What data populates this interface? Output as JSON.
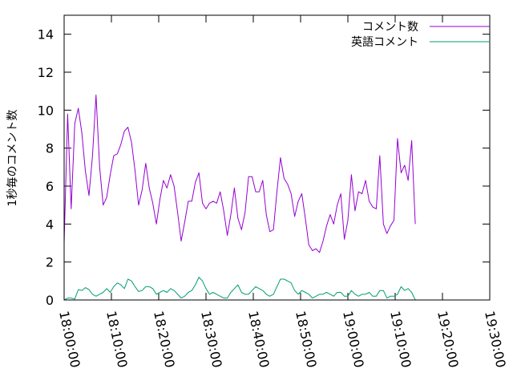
{
  "chart_data": {
    "type": "line",
    "ylabel": "1秒毎のコメント数",
    "xlabel": "",
    "title": "",
    "ylim": [
      0,
      15
    ],
    "xlim": [
      "18:00:00",
      "19:30:00"
    ],
    "y_ticks": [
      "0",
      "2",
      "4",
      "6",
      "8",
      "10",
      "12",
      "14"
    ],
    "x_ticks": [
      "18:00:00",
      "18:10:00",
      "18:20:00",
      "18:30:00",
      "18:40:00",
      "18:50:00",
      "19:00:00",
      "19:10:00",
      "19:20:00",
      "19:30:00"
    ],
    "legend_position": "top-right",
    "grid": false,
    "series": [
      {
        "name": "コメント数",
        "color": "#9400d3",
        "points": [
          [
            "18:00:00",
            3.0
          ],
          [
            "18:00:45",
            9.8
          ],
          [
            "18:01:30",
            4.8
          ],
          [
            "18:02:15",
            9.3
          ],
          [
            "18:03:00",
            10.1
          ],
          [
            "18:03:45",
            8.8
          ],
          [
            "18:04:30",
            6.8
          ],
          [
            "18:05:15",
            5.5
          ],
          [
            "18:06:00",
            7.6
          ],
          [
            "18:06:45",
            10.8
          ],
          [
            "18:07:30",
            7.0
          ],
          [
            "18:08:15",
            5.0
          ],
          [
            "18:09:00",
            5.4
          ],
          [
            "18:09:45",
            6.6
          ],
          [
            "18:10:30",
            7.6
          ],
          [
            "18:11:15",
            7.7
          ],
          [
            "18:12:00",
            8.2
          ],
          [
            "18:12:45",
            8.9
          ],
          [
            "18:13:30",
            9.1
          ],
          [
            "18:14:15",
            8.3
          ],
          [
            "18:15:00",
            6.8
          ],
          [
            "18:15:45",
            5.0
          ],
          [
            "18:16:30",
            5.8
          ],
          [
            "18:17:15",
            7.2
          ],
          [
            "18:18:00",
            5.9
          ],
          [
            "18:18:45",
            5.1
          ],
          [
            "18:19:30",
            4.0
          ],
          [
            "18:20:15",
            5.3
          ],
          [
            "18:21:00",
            6.3
          ],
          [
            "18:21:45",
            5.9
          ],
          [
            "18:22:30",
            6.6
          ],
          [
            "18:23:15",
            6.0
          ],
          [
            "18:24:00",
            4.6
          ],
          [
            "18:24:45",
            3.1
          ],
          [
            "18:25:30",
            4.1
          ],
          [
            "18:26:15",
            5.2
          ],
          [
            "18:27:00",
            5.2
          ],
          [
            "18:27:45",
            6.2
          ],
          [
            "18:28:30",
            6.7
          ],
          [
            "18:29:15",
            5.1
          ],
          [
            "18:30:00",
            4.8
          ],
          [
            "18:30:45",
            5.1
          ],
          [
            "18:31:30",
            5.2
          ],
          [
            "18:32:15",
            5.1
          ],
          [
            "18:33:00",
            5.7
          ],
          [
            "18:33:45",
            4.7
          ],
          [
            "18:34:30",
            3.4
          ],
          [
            "18:35:15",
            4.5
          ],
          [
            "18:36:00",
            5.9
          ],
          [
            "18:36:45",
            4.3
          ],
          [
            "18:37:30",
            3.7
          ],
          [
            "18:38:15",
            4.6
          ],
          [
            "18:39:00",
            6.5
          ],
          [
            "18:39:45",
            6.5
          ],
          [
            "18:40:30",
            5.7
          ],
          [
            "18:41:15",
            5.7
          ],
          [
            "18:42:00",
            6.3
          ],
          [
            "18:42:45",
            4.5
          ],
          [
            "18:43:30",
            3.6
          ],
          [
            "18:44:15",
            3.7
          ],
          [
            "18:45:00",
            5.7
          ],
          [
            "18:45:45",
            7.5
          ],
          [
            "18:46:30",
            6.4
          ],
          [
            "18:47:15",
            6.1
          ],
          [
            "18:48:00",
            5.6
          ],
          [
            "18:48:45",
            4.4
          ],
          [
            "18:49:30",
            5.2
          ],
          [
            "18:50:15",
            5.6
          ],
          [
            "18:51:00",
            4.3
          ],
          [
            "18:51:45",
            2.9
          ],
          [
            "18:52:30",
            2.6
          ],
          [
            "18:53:15",
            2.7
          ],
          [
            "18:54:00",
            2.5
          ],
          [
            "18:54:45",
            3.1
          ],
          [
            "18:55:30",
            3.9
          ],
          [
            "18:56:15",
            4.5
          ],
          [
            "18:57:00",
            4.0
          ],
          [
            "18:57:45",
            5.0
          ],
          [
            "18:58:30",
            5.6
          ],
          [
            "18:59:15",
            3.2
          ],
          [
            "19:00:00",
            4.2
          ],
          [
            "19:00:45",
            6.6
          ],
          [
            "19:01:30",
            4.7
          ],
          [
            "19:02:15",
            5.7
          ],
          [
            "19:03:00",
            5.6
          ],
          [
            "19:03:45",
            6.3
          ],
          [
            "19:04:30",
            5.2
          ],
          [
            "19:05:15",
            4.9
          ],
          [
            "19:06:00",
            4.8
          ],
          [
            "19:06:45",
            7.6
          ],
          [
            "19:07:30",
            4.0
          ],
          [
            "19:08:15",
            3.5
          ],
          [
            "19:09:00",
            3.9
          ],
          [
            "19:09:45",
            4.2
          ],
          [
            "19:10:30",
            8.5
          ],
          [
            "19:11:15",
            6.7
          ],
          [
            "19:12:00",
            7.1
          ],
          [
            "19:12:45",
            6.3
          ],
          [
            "19:13:30",
            8.4
          ],
          [
            "19:14:15",
            4.0
          ]
        ]
      },
      {
        "name": "英語コメント",
        "color": "#009e73",
        "points": [
          [
            "18:00:00",
            0.0
          ],
          [
            "18:00:45",
            0.1
          ],
          [
            "18:01:30",
            0.1
          ],
          [
            "18:02:15",
            0.05
          ],
          [
            "18:03:00",
            0.55
          ],
          [
            "18:03:45",
            0.5
          ],
          [
            "18:04:30",
            0.65
          ],
          [
            "18:05:15",
            0.55
          ],
          [
            "18:06:00",
            0.3
          ],
          [
            "18:06:45",
            0.2
          ],
          [
            "18:07:30",
            0.3
          ],
          [
            "18:08:15",
            0.4
          ],
          [
            "18:09:00",
            0.6
          ],
          [
            "18:09:45",
            0.4
          ],
          [
            "18:10:30",
            0.7
          ],
          [
            "18:11:15",
            0.9
          ],
          [
            "18:12:00",
            0.8
          ],
          [
            "18:12:45",
            0.6
          ],
          [
            "18:13:30",
            1.1
          ],
          [
            "18:14:15",
            1.0
          ],
          [
            "18:15:00",
            0.7
          ],
          [
            "18:15:45",
            0.45
          ],
          [
            "18:16:30",
            0.5
          ],
          [
            "18:17:15",
            0.7
          ],
          [
            "18:18:00",
            0.7
          ],
          [
            "18:18:45",
            0.6
          ],
          [
            "18:19:30",
            0.3
          ],
          [
            "18:20:15",
            0.4
          ],
          [
            "18:21:00",
            0.5
          ],
          [
            "18:21:45",
            0.4
          ],
          [
            "18:22:30",
            0.6
          ],
          [
            "18:23:15",
            0.5
          ],
          [
            "18:24:00",
            0.3
          ],
          [
            "18:24:45",
            0.1
          ],
          [
            "18:25:30",
            0.2
          ],
          [
            "18:26:15",
            0.4
          ],
          [
            "18:27:00",
            0.5
          ],
          [
            "18:27:45",
            0.8
          ],
          [
            "18:28:30",
            1.2
          ],
          [
            "18:29:15",
            1.0
          ],
          [
            "18:30:00",
            0.6
          ],
          [
            "18:30:45",
            0.3
          ],
          [
            "18:31:30",
            0.4
          ],
          [
            "18:32:15",
            0.3
          ],
          [
            "18:33:00",
            0.2
          ],
          [
            "18:33:45",
            0.1
          ],
          [
            "18:34:30",
            0.1
          ],
          [
            "18:35:15",
            0.4
          ],
          [
            "18:36:00",
            0.6
          ],
          [
            "18:36:45",
            0.8
          ],
          [
            "18:37:30",
            0.4
          ],
          [
            "18:38:15",
            0.3
          ],
          [
            "18:39:00",
            0.3
          ],
          [
            "18:39:45",
            0.5
          ],
          [
            "18:40:30",
            0.7
          ],
          [
            "18:41:15",
            0.6
          ],
          [
            "18:42:00",
            0.5
          ],
          [
            "18:42:45",
            0.3
          ],
          [
            "18:43:30",
            0.2
          ],
          [
            "18:44:15",
            0.3
          ],
          [
            "18:45:00",
            0.7
          ],
          [
            "18:45:45",
            1.1
          ],
          [
            "18:46:30",
            1.1
          ],
          [
            "18:47:15",
            1.0
          ],
          [
            "18:48:00",
            0.9
          ],
          [
            "18:48:45",
            0.5
          ],
          [
            "18:49:30",
            0.3
          ],
          [
            "18:50:15",
            0.5
          ],
          [
            "18:51:00",
            0.4
          ],
          [
            "18:51:45",
            0.3
          ],
          [
            "18:52:30",
            0.1
          ],
          [
            "18:53:15",
            0.2
          ],
          [
            "18:54:00",
            0.3
          ],
          [
            "18:54:45",
            0.3
          ],
          [
            "18:55:30",
            0.4
          ],
          [
            "18:56:15",
            0.3
          ],
          [
            "18:57:00",
            0.2
          ],
          [
            "18:57:45",
            0.4
          ],
          [
            "18:58:30",
            0.4
          ],
          [
            "18:59:15",
            0.2
          ],
          [
            "19:00:00",
            0.2
          ],
          [
            "19:00:45",
            0.5
          ],
          [
            "19:01:30",
            0.3
          ],
          [
            "19:02:15",
            0.2
          ],
          [
            "19:03:00",
            0.3
          ],
          [
            "19:03:45",
            0.3
          ],
          [
            "19:04:30",
            0.4
          ],
          [
            "19:05:15",
            0.2
          ],
          [
            "19:06:00",
            0.2
          ],
          [
            "19:06:45",
            0.5
          ],
          [
            "19:07:30",
            0.5
          ],
          [
            "19:08:15",
            0.1
          ],
          [
            "19:09:00",
            0.2
          ],
          [
            "19:09:45",
            0.2
          ],
          [
            "19:10:30",
            0.3
          ],
          [
            "19:11:15",
            0.7
          ],
          [
            "19:12:00",
            0.5
          ],
          [
            "19:12:45",
            0.6
          ],
          [
            "19:13:30",
            0.4
          ],
          [
            "19:14:15",
            0.0
          ]
        ]
      }
    ]
  }
}
